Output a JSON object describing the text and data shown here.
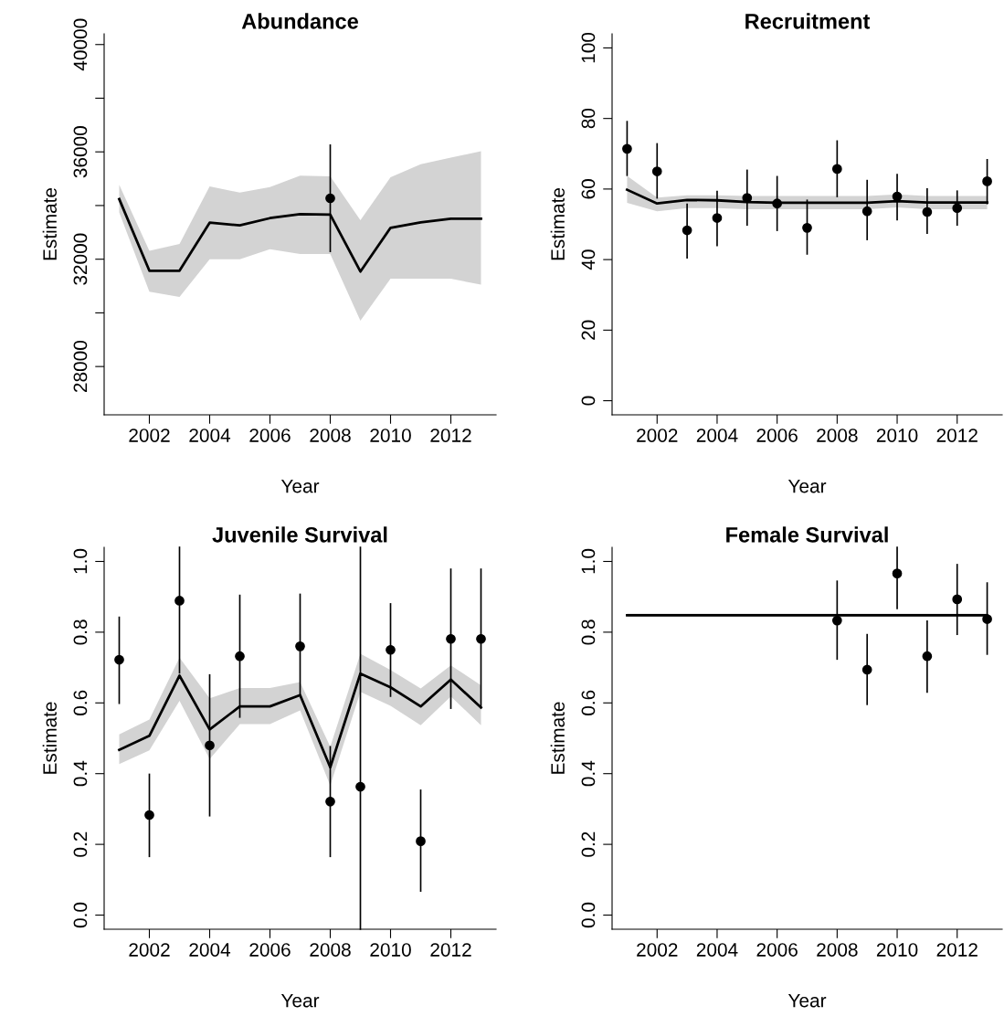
{
  "chart_data": [
    {
      "type": "line",
      "title": "Abundance",
      "xlabel": "Year",
      "ylabel": "Estimate",
      "xlim": [
        2000.5,
        2013.5
      ],
      "xticks": [
        2002,
        2004,
        2006,
        2008,
        2010,
        2012
      ],
      "ylim": [
        26200,
        40400
      ],
      "yticks": [
        28000,
        {
          "value": 30000,
          "label": null
        },
        32000,
        {
          "value": 34000,
          "label": null
        },
        36000,
        {
          "value": 38000,
          "label": null
        },
        40000
      ],
      "marker": "circle",
      "grid": false,
      "x": [
        2001,
        2002,
        2003,
        2004,
        2005,
        2006,
        2007,
        2008,
        2009,
        2010,
        2011,
        2012,
        2013
      ],
      "series": [
        {
          "marker": "none",
          "color": "#000000",
          "values": [
            34240,
            31570,
            31570,
            33360,
            33260,
            33530,
            33680,
            33660,
            31540,
            33170,
            33370,
            33510,
            33510
          ],
          "upper": [
            34770,
            32310,
            32570,
            34710,
            34480,
            34690,
            35110,
            35090,
            33450,
            35050,
            35540,
            35790,
            36020
          ],
          "lower": [
            33740,
            30790,
            30590,
            32000,
            32000,
            32370,
            32190,
            32190,
            29710,
            31270,
            31270,
            31270,
            31050
          ]
        },
        {
          "type": "scatter",
          "color": "#000000",
          "x": [
            2008
          ],
          "values": [
            34270
          ],
          "errors": [
            [
              32290,
              36250
            ]
          ]
        }
      ]
    },
    {
      "type": "line",
      "title": "Recruitment",
      "xlabel": "Year",
      "ylabel": "Estimate",
      "xlim": [
        2000.5,
        2013.5
      ],
      "xticks": [
        2002,
        2004,
        2006,
        2008,
        2010,
        2012
      ],
      "ylim": [
        -4,
        104
      ],
      "yticks": [
        0,
        20,
        40,
        60,
        80,
        100
      ],
      "marker": "circle",
      "grid": false,
      "x": [
        2001,
        2002,
        2003,
        2004,
        2005,
        2006,
        2007,
        2008,
        2009,
        2010,
        2011,
        2012,
        2013
      ],
      "series": [
        {
          "marker": "none",
          "color": "#000000",
          "values": [
            59.8,
            55.9,
            56.9,
            56.8,
            56.3,
            56.1,
            56.1,
            56.1,
            56.1,
            56.6,
            56.2,
            56.2,
            56.2
          ],
          "upper": [
            63.7,
            57.6,
            58.2,
            58.2,
            58.0,
            58.0,
            58.0,
            58.0,
            58.0,
            58.5,
            58.0,
            58.0,
            58.0
          ],
          "lower": [
            56.1,
            53.7,
            54.6,
            54.6,
            54.3,
            54.3,
            54.3,
            54.3,
            54.3,
            54.8,
            54.3,
            54.3,
            54.3
          ]
        },
        {
          "type": "scatter",
          "color": "#000000",
          "values": [
            71.4,
            65.0,
            48.3,
            51.8,
            57.5,
            55.9,
            49.0,
            65.7,
            53.7,
            57.9,
            53.5,
            54.6,
            62.2
          ],
          "errors": [
            [
              63.9,
              79.1
            ],
            [
              57.5,
              72.8
            ],
            [
              40.5,
              55.7
            ],
            [
              44.0,
              59.3
            ],
            [
              49.8,
              65.3
            ],
            [
              48.3,
              63.5
            ],
            [
              41.6,
              56.8
            ],
            [
              57.9,
              73.6
            ],
            [
              45.7,
              62.4
            ],
            [
              51.3,
              64.1
            ],
            [
              47.5,
              60.0
            ],
            [
              49.8,
              59.4
            ],
            [
              55.9,
              68.3
            ]
          ]
        }
      ]
    },
    {
      "type": "line",
      "title": "Juvenile Survival",
      "xlabel": "Year",
      "ylabel": "Estimate",
      "xlim": [
        2000.5,
        2013.5
      ],
      "xticks": [
        2002,
        2004,
        2006,
        2008,
        2010,
        2012
      ],
      "ylim": [
        -0.04,
        1.04
      ],
      "yticks": [
        {
          "value": 0,
          "label": "0.0"
        },
        {
          "value": 0.2,
          "label": "0.2"
        },
        {
          "value": 0.4,
          "label": "0.4"
        },
        {
          "value": 0.6,
          "label": "0.6"
        },
        {
          "value": 0.8,
          "label": "0.8"
        },
        {
          "value": 1,
          "label": "1.0"
        }
      ],
      "marker": "circle",
      "grid": false,
      "x": [
        2001,
        2002,
        2003,
        2004,
        2005,
        2006,
        2007,
        2008,
        2009,
        2010,
        2011,
        2012,
        2013
      ],
      "series": [
        {
          "marker": "none",
          "color": "#000000",
          "values": [
            0.467,
            0.507,
            0.677,
            0.525,
            0.59,
            0.59,
            0.622,
            0.418,
            0.683,
            0.644,
            0.59,
            0.666,
            0.587
          ],
          "upper": [
            0.511,
            0.553,
            0.728,
            0.613,
            0.642,
            0.642,
            0.659,
            0.476,
            0.739,
            0.693,
            0.641,
            0.706,
            0.65
          ],
          "lower": [
            0.427,
            0.466,
            0.606,
            0.441,
            0.54,
            0.54,
            0.579,
            0.366,
            0.631,
            0.592,
            0.537,
            0.618,
            0.537
          ]
        },
        {
          "type": "scatter",
          "color": "#000000",
          "values": [
            0.722,
            0.283,
            0.889,
            0.48,
            0.732,
            null,
            0.76,
            0.321,
            0.363,
            0.75,
            0.209,
            0.781,
            0.781
          ],
          "errors": [
            [
              0.599,
              0.842
            ],
            [
              0.166,
              0.398
            ],
            [
              0.685,
              1.04
            ],
            [
              0.281,
              0.679
            ],
            [
              0.56,
              0.904
            ],
            null,
            [
              0.622,
              0.907
            ],
            [
              0.166,
              0.476
            ],
            [
              -0.04,
              1.04
            ],
            [
              0.619,
              0.88
            ],
            [
              0.068,
              0.353
            ],
            [
              0.585,
              0.978
            ],
            [
              0.587,
              0.978
            ]
          ]
        }
      ]
    },
    {
      "type": "line",
      "title": "Female Survival",
      "xlabel": "Year",
      "ylabel": "Estimate",
      "xlim": [
        2000.5,
        2013.5
      ],
      "xticks": [
        2002,
        2004,
        2006,
        2008,
        2010,
        2012
      ],
      "ylim": [
        -0.04,
        1.04
      ],
      "yticks": [
        {
          "value": 0,
          "label": "0.0"
        },
        {
          "value": 0.2,
          "label": "0.2"
        },
        {
          "value": 0.4,
          "label": "0.4"
        },
        {
          "value": 0.6,
          "label": "0.6"
        },
        {
          "value": 0.8,
          "label": "0.8"
        },
        {
          "value": 1,
          "label": "1.0"
        }
      ],
      "marker": "circle",
      "grid": false,
      "x": [
        2001,
        2002,
        2003,
        2004,
        2005,
        2006,
        2007,
        2008,
        2009,
        2010,
        2011,
        2012,
        2013
      ],
      "series": [
        {
          "marker": "none",
          "color": "#000000",
          "values": [
            0.848,
            0.848,
            0.848,
            0.848,
            0.848,
            0.848,
            0.848,
            0.848,
            0.848,
            0.848,
            0.848,
            0.848,
            0.848
          ],
          "upper": [
            0.853,
            0.853,
            0.853,
            0.853,
            0.853,
            0.853,
            0.853,
            0.853,
            0.853,
            0.853,
            0.853,
            0.853,
            0.853
          ],
          "lower": [
            0.843,
            0.843,
            0.843,
            0.843,
            0.843,
            0.843,
            0.843,
            0.843,
            0.843,
            0.843,
            0.843,
            0.843,
            0.843
          ]
        },
        {
          "type": "scatter",
          "color": "#000000",
          "x": [
            2008,
            2009,
            2010,
            2011,
            2012,
            2013
          ],
          "values": [
            0.833,
            0.694,
            0.966,
            0.732,
            0.893,
            0.837
          ],
          "errors": [
            [
              0.724,
              0.944
            ],
            [
              0.596,
              0.793
            ],
            [
              0.867,
              1.04
            ],
            [
              0.631,
              0.831
            ],
            [
              0.794,
              0.991
            ],
            [
              0.738,
              0.939
            ]
          ]
        }
      ]
    }
  ]
}
